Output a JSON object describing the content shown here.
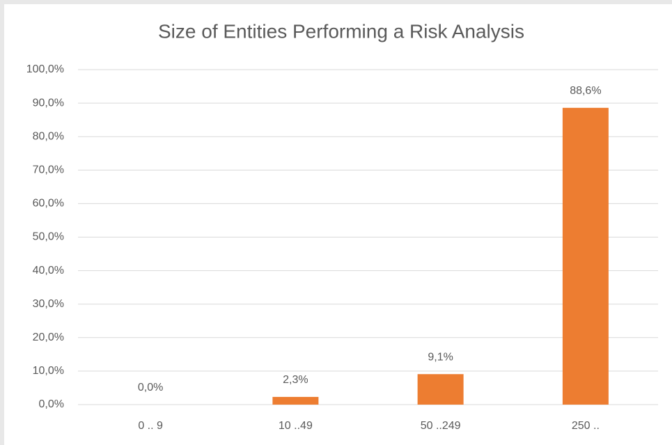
{
  "chart_data": {
    "type": "bar",
    "title": "Size of Entities Performing a Risk Analysis",
    "categories": [
      "0 .. 9",
      "10 ..49",
      "50 ..249",
      "250 .."
    ],
    "values": [
      0,
      2.3,
      9.1,
      88.6
    ],
    "value_labels": [
      "0,0%",
      "2,3%",
      "9,1%",
      "88,6%"
    ],
    "color": "#ed7d31",
    "ylim": [
      0,
      100
    ],
    "yticks": [
      {
        "value": 0,
        "label": "0,0%"
      },
      {
        "value": 10,
        "label": "10,0%"
      },
      {
        "value": 20,
        "label": "20,0%"
      },
      {
        "value": 30,
        "label": "30,0%"
      },
      {
        "value": 40,
        "label": "40,0%"
      },
      {
        "value": 50,
        "label": "50,0%"
      },
      {
        "value": 60,
        "label": "60,0%"
      },
      {
        "value": 70,
        "label": "70,0%"
      },
      {
        "value": 80,
        "label": "80,0%"
      },
      {
        "value": 90,
        "label": "90,0%"
      },
      {
        "value": 100,
        "label": "100,0%"
      }
    ],
    "grid": true
  }
}
